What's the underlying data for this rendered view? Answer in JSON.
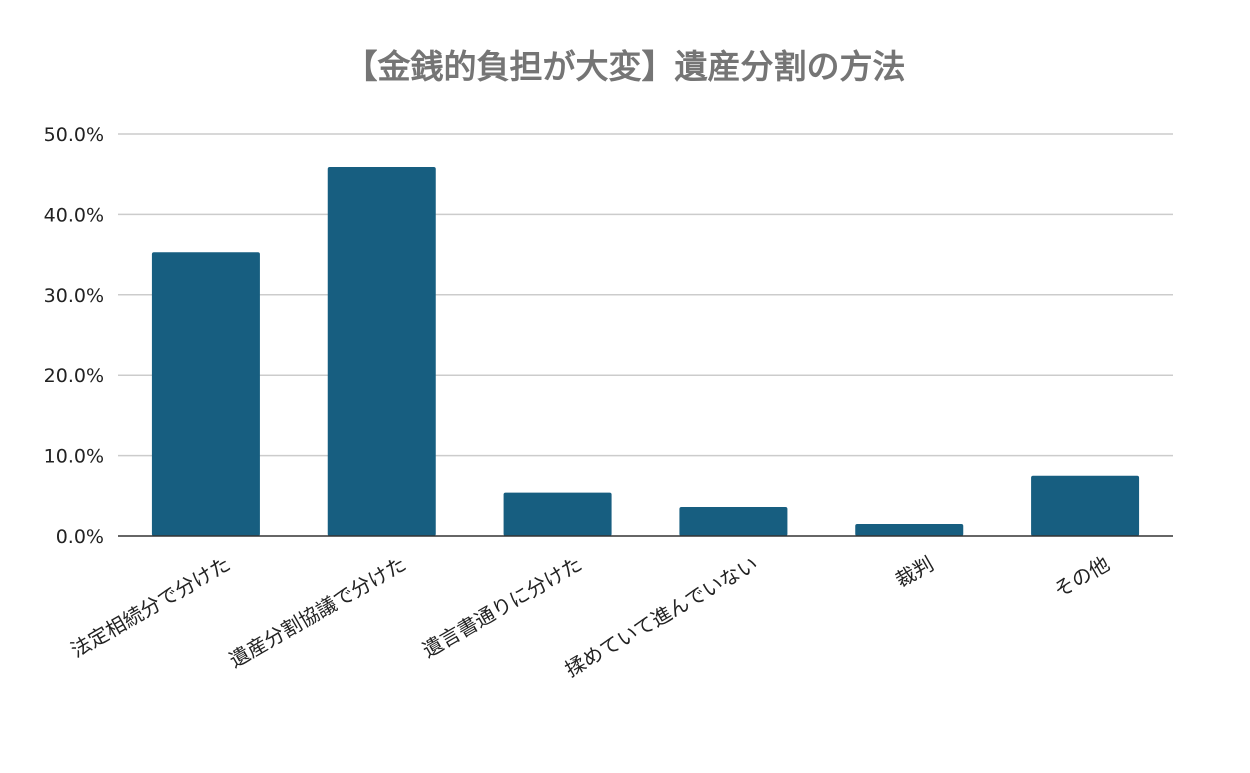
{
  "chart_data": {
    "type": "bar",
    "title": "【金銭的負担が大変】遺産分割の方法",
    "xlabel": "",
    "ylabel": "",
    "categories": [
      "法定相続分で分けた",
      "遺産分割協議で分けた",
      "遺言書通りに分けた",
      "揉めていて進んでいない",
      "裁判",
      "その他"
    ],
    "values": [
      35.3,
      45.9,
      5.4,
      3.6,
      1.5,
      7.5
    ],
    "ylim": [
      0,
      50
    ],
    "yticks": [
      0,
      10,
      20,
      30,
      40,
      50
    ],
    "ytick_labels": [
      "0.0%",
      "10.0%",
      "20.0%",
      "30.0%",
      "40.0%",
      "50.0%"
    ],
    "grid": true,
    "legend": "none",
    "colors": {
      "bar": "#175e80",
      "title": "#757575",
      "grid": "#cccccc",
      "axis": "#333333",
      "text": "#222222"
    }
  }
}
